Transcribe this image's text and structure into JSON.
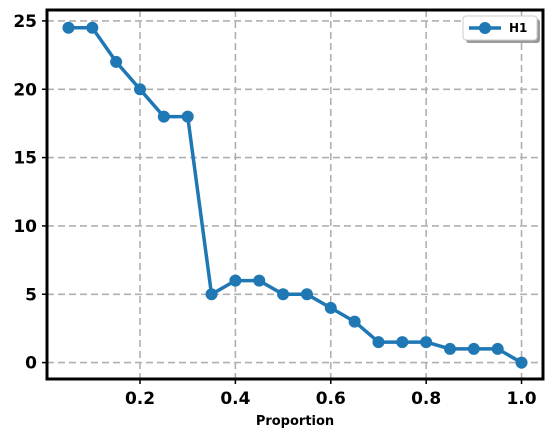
{
  "chart_data": {
    "type": "line",
    "title": "",
    "xlabel": "Proportion",
    "ylabel": "",
    "xlim": [
      0.005,
      1.045
    ],
    "ylim": [
      -1.2,
      25.8
    ],
    "xticks": [
      "0.2",
      "0.4",
      "0.6",
      "0.8",
      "1.0"
    ],
    "yticks": [
      "0",
      "5",
      "10",
      "15",
      "20",
      "25"
    ],
    "grid": true,
    "legend_position": "top-right",
    "series": [
      {
        "name": "H1",
        "color": "#1f77b4",
        "marker": "circle",
        "x": [
          0.05,
          0.1,
          0.15,
          0.2,
          0.25,
          0.3,
          0.35,
          0.4,
          0.45,
          0.5,
          0.55,
          0.6,
          0.65,
          0.7,
          0.75,
          0.8,
          0.85,
          0.9,
          0.95,
          1.0
        ],
        "y": [
          24.5,
          24.5,
          22,
          20,
          18,
          18,
          5,
          6,
          6,
          5,
          5,
          4,
          3,
          1.5,
          1.5,
          1.5,
          1,
          1,
          1,
          0
        ]
      }
    ]
  }
}
